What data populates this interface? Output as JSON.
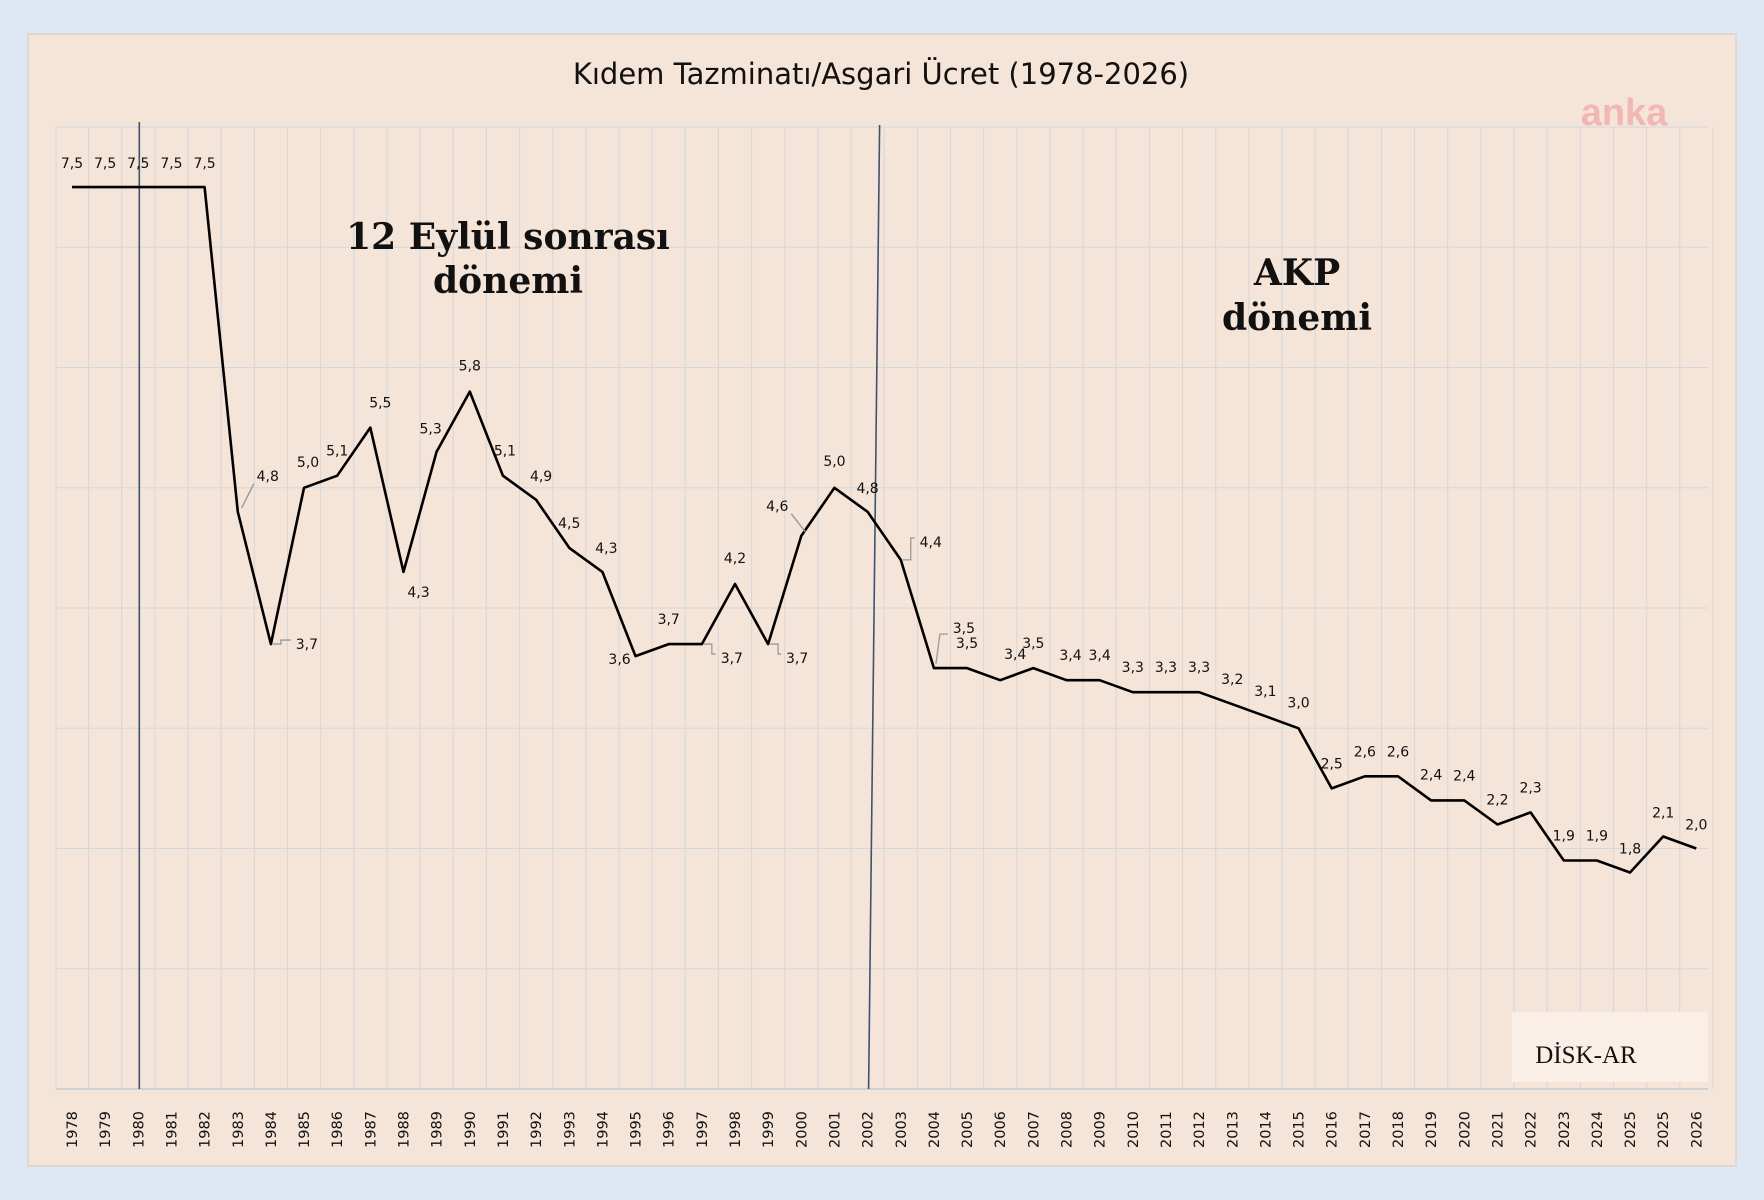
{
  "chart_data": {
    "type": "line",
    "title": "Kıdem Tazminatı/Asgari Ücret (1978-2026)",
    "x": [
      "1978",
      "1979",
      "1980",
      "1981",
      "1982",
      "1983",
      "1984",
      "1985",
      "1986",
      "1987",
      "1988",
      "1989",
      "1990",
      "1991",
      "1992",
      "1993",
      "1994",
      "1995",
      "1996",
      "1997",
      "1998",
      "1999",
      "2000",
      "2001",
      "2002",
      "2003",
      "2004",
      "2005",
      "2006",
      "2007",
      "2008",
      "2009",
      "2010",
      "2011",
      "2012",
      "2013",
      "2014",
      "2015",
      "2016",
      "2017",
      "2018",
      "2019",
      "2020",
      "2021",
      "2022",
      "2023",
      "2024",
      "2025",
      "2025",
      "2026"
    ],
    "values": [
      7.5,
      7.5,
      7.5,
      7.5,
      7.5,
      4.8,
      3.7,
      5.0,
      5.1,
      5.5,
      4.3,
      5.3,
      5.8,
      5.1,
      4.9,
      4.5,
      4.3,
      3.6,
      3.7,
      3.7,
      4.2,
      3.7,
      4.6,
      5.0,
      4.8,
      4.4,
      3.5,
      3.5,
      3.4,
      3.5,
      3.4,
      3.4,
      3.3,
      3.3,
      3.3,
      3.2,
      3.1,
      3.0,
      2.5,
      2.6,
      2.6,
      2.4,
      2.4,
      2.2,
      2.3,
      1.9,
      1.9,
      1.8,
      2.1,
      2.0
    ],
    "labels": [
      "7,5",
      "7,5",
      "7,5",
      "7,5",
      "7,5",
      "4,8",
      "3,7",
      "5,0",
      "5,1",
      "5,5",
      "4,3",
      "5,3",
      "5,8",
      "5,1",
      "4,9",
      "4,5",
      "4,3",
      "3,6",
      "3,7",
      "3,7",
      "4,2",
      "3,7",
      "4,6",
      "5,0",
      "4,8",
      "4,4",
      "3,5",
      "3,5",
      "3,4",
      "3,5",
      "3,4",
      "3,4",
      "3,3",
      "3,3",
      "3,3",
      "3,2",
      "3,1",
      "3,0",
      "2,5",
      "2,6",
      "2,6",
      "2,4",
      "2,4",
      "2,2",
      "2,3",
      "1,9",
      "1,9",
      "1,8",
      "2,1",
      "2,0"
    ],
    "ylim": [
      0,
      8
    ],
    "grid": true,
    "line_color": "#000000",
    "vertical_markers": [
      "1980",
      "2002"
    ],
    "marker_color": "#3b5570"
  },
  "annotations": {
    "period1": [
      "12 Eylül sonrası",
      "dönemi"
    ],
    "period2": [
      "AKP",
      "dönemi"
    ]
  },
  "watermark": "anka",
  "source": "DİSK-AR",
  "colors": {
    "page_bg": "#dde8f4",
    "plot_bg": "#f5e4d8",
    "grid": "#d2d8dc",
    "watermark": "#f0b7b4"
  }
}
